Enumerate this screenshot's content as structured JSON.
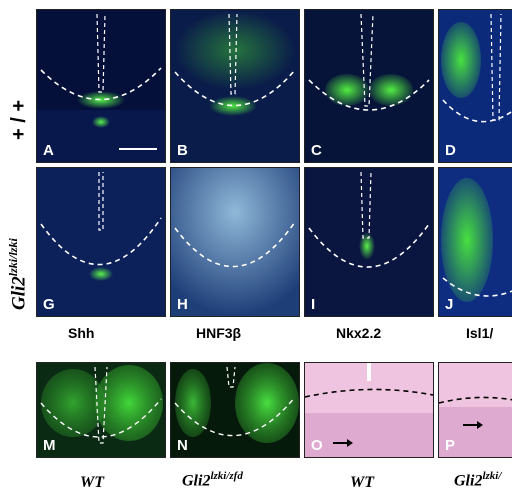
{
  "row_labels": {
    "row1": "+ / +",
    "row2_base": "Gli2",
    "row2_sup": "lzki/lzki"
  },
  "column_labels": {
    "c1": "Shh",
    "c2": "HNF3β",
    "c3": "Nkx2.2",
    "c4": "Isl1/"
  },
  "panels": {
    "A": "A",
    "B": "B",
    "C": "C",
    "D": "D",
    "G": "G",
    "H": "H",
    "I": "I",
    "J": "J",
    "M": "M",
    "N": "N",
    "O": "O",
    "P": "P"
  },
  "genotypes": {
    "m": "WT",
    "n_base": "Gli2",
    "n_sup": "lzki/zfd",
    "o": "WT",
    "p_base": "Gli2",
    "p_sup": "lzki/"
  },
  "colors": {
    "fluor_bg": "#061238",
    "gfp": "#3ee83a",
    "he_bg": "#e8b8dc",
    "dashed": "#ffffff"
  }
}
